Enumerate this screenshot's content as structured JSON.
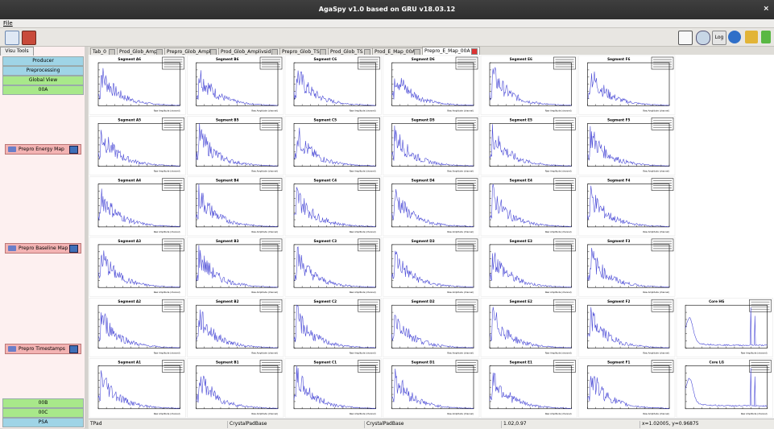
{
  "window": {
    "title": "AgaSpy v1.0 based on GRU v18.03.12",
    "close": "×"
  },
  "menu": {
    "file": "File"
  },
  "toolbar": {
    "log_label": "Log"
  },
  "side": {
    "tab": "Visu Tools",
    "buttons": [
      "Producer",
      "Preprocessing",
      "Global View",
      "00A"
    ],
    "actions": [
      "Prepro Energy Map",
      "Prepro Baseline Map",
      "Prepro Timestamps"
    ],
    "bottom": [
      "00B",
      "00C",
      "PSA"
    ]
  },
  "tabs": [
    "Tab_0",
    "Prod_Glob_Ampli",
    "Prepro_Glob_Ampli",
    "Prod_Glob_Amplivsid",
    "Prepro_Glob_TS",
    "Prod_Glob_TS",
    "Prod_E_Map_00A",
    "Prepro_E_Map_00A"
  ],
  "active_tab": "Prepro_E_Map_00A",
  "canvas": {
    "rows": [
      [
        "Segment A6",
        "Segment B6",
        "Segment C6",
        "Segment D6",
        "Segment E6",
        "Segment F6",
        ""
      ],
      [
        "Segment A5",
        "Segment B5",
        "Segment C5",
        "Segment D5",
        "Segment E5",
        "Segment F5",
        ""
      ],
      [
        "Segment A4",
        "Segment B4",
        "Segment C4",
        "Segment D4",
        "Segment E4",
        "Segment F4",
        ""
      ],
      [
        "Segment A3",
        "Segment B3",
        "Segment C3",
        "Segment D3",
        "Segment E3",
        "Segment F3",
        ""
      ],
      [
        "Segment A2",
        "Segment B2",
        "Segment C2",
        "Segment D2",
        "Segment E2",
        "Segment F2",
        "Core HG"
      ],
      [
        "Segment A1",
        "Segment B1",
        "Segment C1",
        "Segment D1",
        "Segment E1",
        "Segment F1",
        "Core LG"
      ]
    ],
    "xlabel": "Raw Amplitude (channel)"
  },
  "status": [
    "TPad",
    "CrystalPadBase",
    "CrystalPadBase",
    "1.02,0.97",
    "x=1.02005, y=0.96875"
  ]
}
